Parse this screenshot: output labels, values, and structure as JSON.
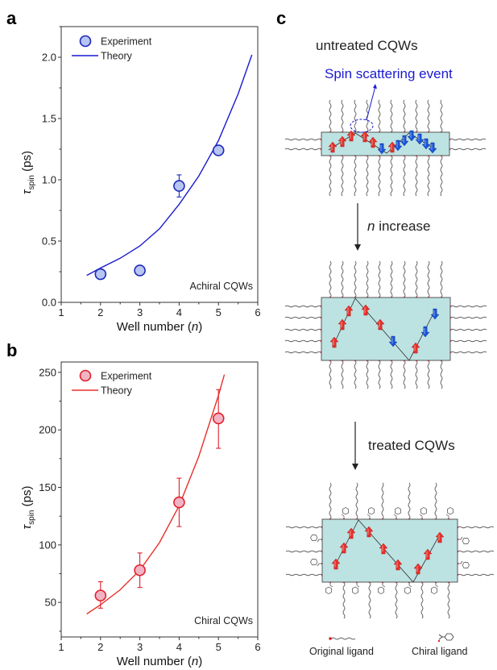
{
  "chart_data": [
    {
      "panel": "a",
      "type": "scatter",
      "xlabel": "Well number (n)",
      "ylabel": "τspin (ps)",
      "xlim": [
        1,
        6
      ],
      "ylim": [
        0,
        2.25
      ],
      "xticks": [
        1,
        2,
        3,
        4,
        5,
        6
      ],
      "yticks": [
        0.0,
        0.5,
        1.0,
        1.5,
        2.0
      ],
      "ytick_labels": [
        "0.0",
        "0.5",
        "1.0",
        "1.5",
        "2.0"
      ],
      "legend": {
        "position": "top-left",
        "entries": [
          "Experiment",
          "Theory"
        ]
      },
      "annotation": "Achiral CQWs",
      "colors": {
        "line": "#1a1ad0",
        "marker_fill": "#b8c4f2",
        "marker_edge": "#1a2ab8"
      },
      "series": [
        {
          "name": "Experiment",
          "kind": "points",
          "x": [
            2,
            3,
            4,
            5
          ],
          "y": [
            0.23,
            0.26,
            0.95,
            1.24
          ],
          "err": [
            0.03,
            0.03,
            0.09,
            0.03
          ]
        },
        {
          "name": "Theory",
          "kind": "line",
          "x": [
            1.65,
            2.0,
            2.5,
            3.0,
            3.5,
            4.0,
            4.5,
            5.0,
            5.5,
            5.85
          ],
          "y": [
            0.22,
            0.28,
            0.36,
            0.46,
            0.6,
            0.8,
            1.03,
            1.32,
            1.7,
            2.02
          ]
        }
      ]
    },
    {
      "panel": "b",
      "type": "scatter",
      "xlabel": "Well number (n)",
      "ylabel": "τspin (ps)",
      "xlim": [
        1,
        6
      ],
      "ylim": [
        20,
        259
      ],
      "xticks": [
        1,
        2,
        3,
        4,
        5,
        6
      ],
      "yticks": [
        50,
        100,
        150,
        200,
        250
      ],
      "ytick_labels": [
        "50",
        "100",
        "150",
        "200",
        "250"
      ],
      "legend": {
        "position": "top-left",
        "entries": [
          "Experiment",
          "Theory"
        ]
      },
      "annotation": "Chiral CQWs",
      "colors": {
        "line": "#e8302a",
        "marker_fill": "#f2b4c4",
        "marker_edge": "#e0202a"
      },
      "series": [
        {
          "name": "Experiment",
          "kind": "points",
          "x": [
            2,
            3,
            4,
            5
          ],
          "y": [
            56,
            78,
            137,
            210
          ],
          "err_low": [
            45,
            63,
            116,
            184
          ],
          "err_high": [
            68,
            93,
            158,
            235
          ]
        },
        {
          "name": "Theory",
          "kind": "line",
          "x": [
            1.65,
            2.0,
            2.5,
            3.0,
            3.5,
            4.0,
            4.5,
            5.0,
            5.15
          ],
          "y": [
            40,
            48,
            61,
            78,
            102,
            134,
            177,
            230,
            248
          ]
        }
      ]
    }
  ],
  "panels": {
    "a_label": "a",
    "b_label": "b",
    "c_label": "c"
  },
  "diagram": {
    "step1_title": "untreated CQWs",
    "scatter_label": "Spin scattering event",
    "arrow1_label_italic": "n",
    "arrow1_label_rest": " increase",
    "arrow2_label": "treated CQWs",
    "legend_original": "Original ligand",
    "legend_chiral": "Chiral ligand",
    "colors": {
      "well": "#bde2e2",
      "spin_up": "#e8302a",
      "spin_down": "#1a55d8",
      "scatter": "#1a1ad0"
    }
  },
  "text": {
    "tau": "τ",
    "spin_sub": "spin",
    "ps": " (ps)",
    "xlabel_main": "Well number (",
    "xlabel_n": "n",
    "xlabel_close": ")"
  }
}
